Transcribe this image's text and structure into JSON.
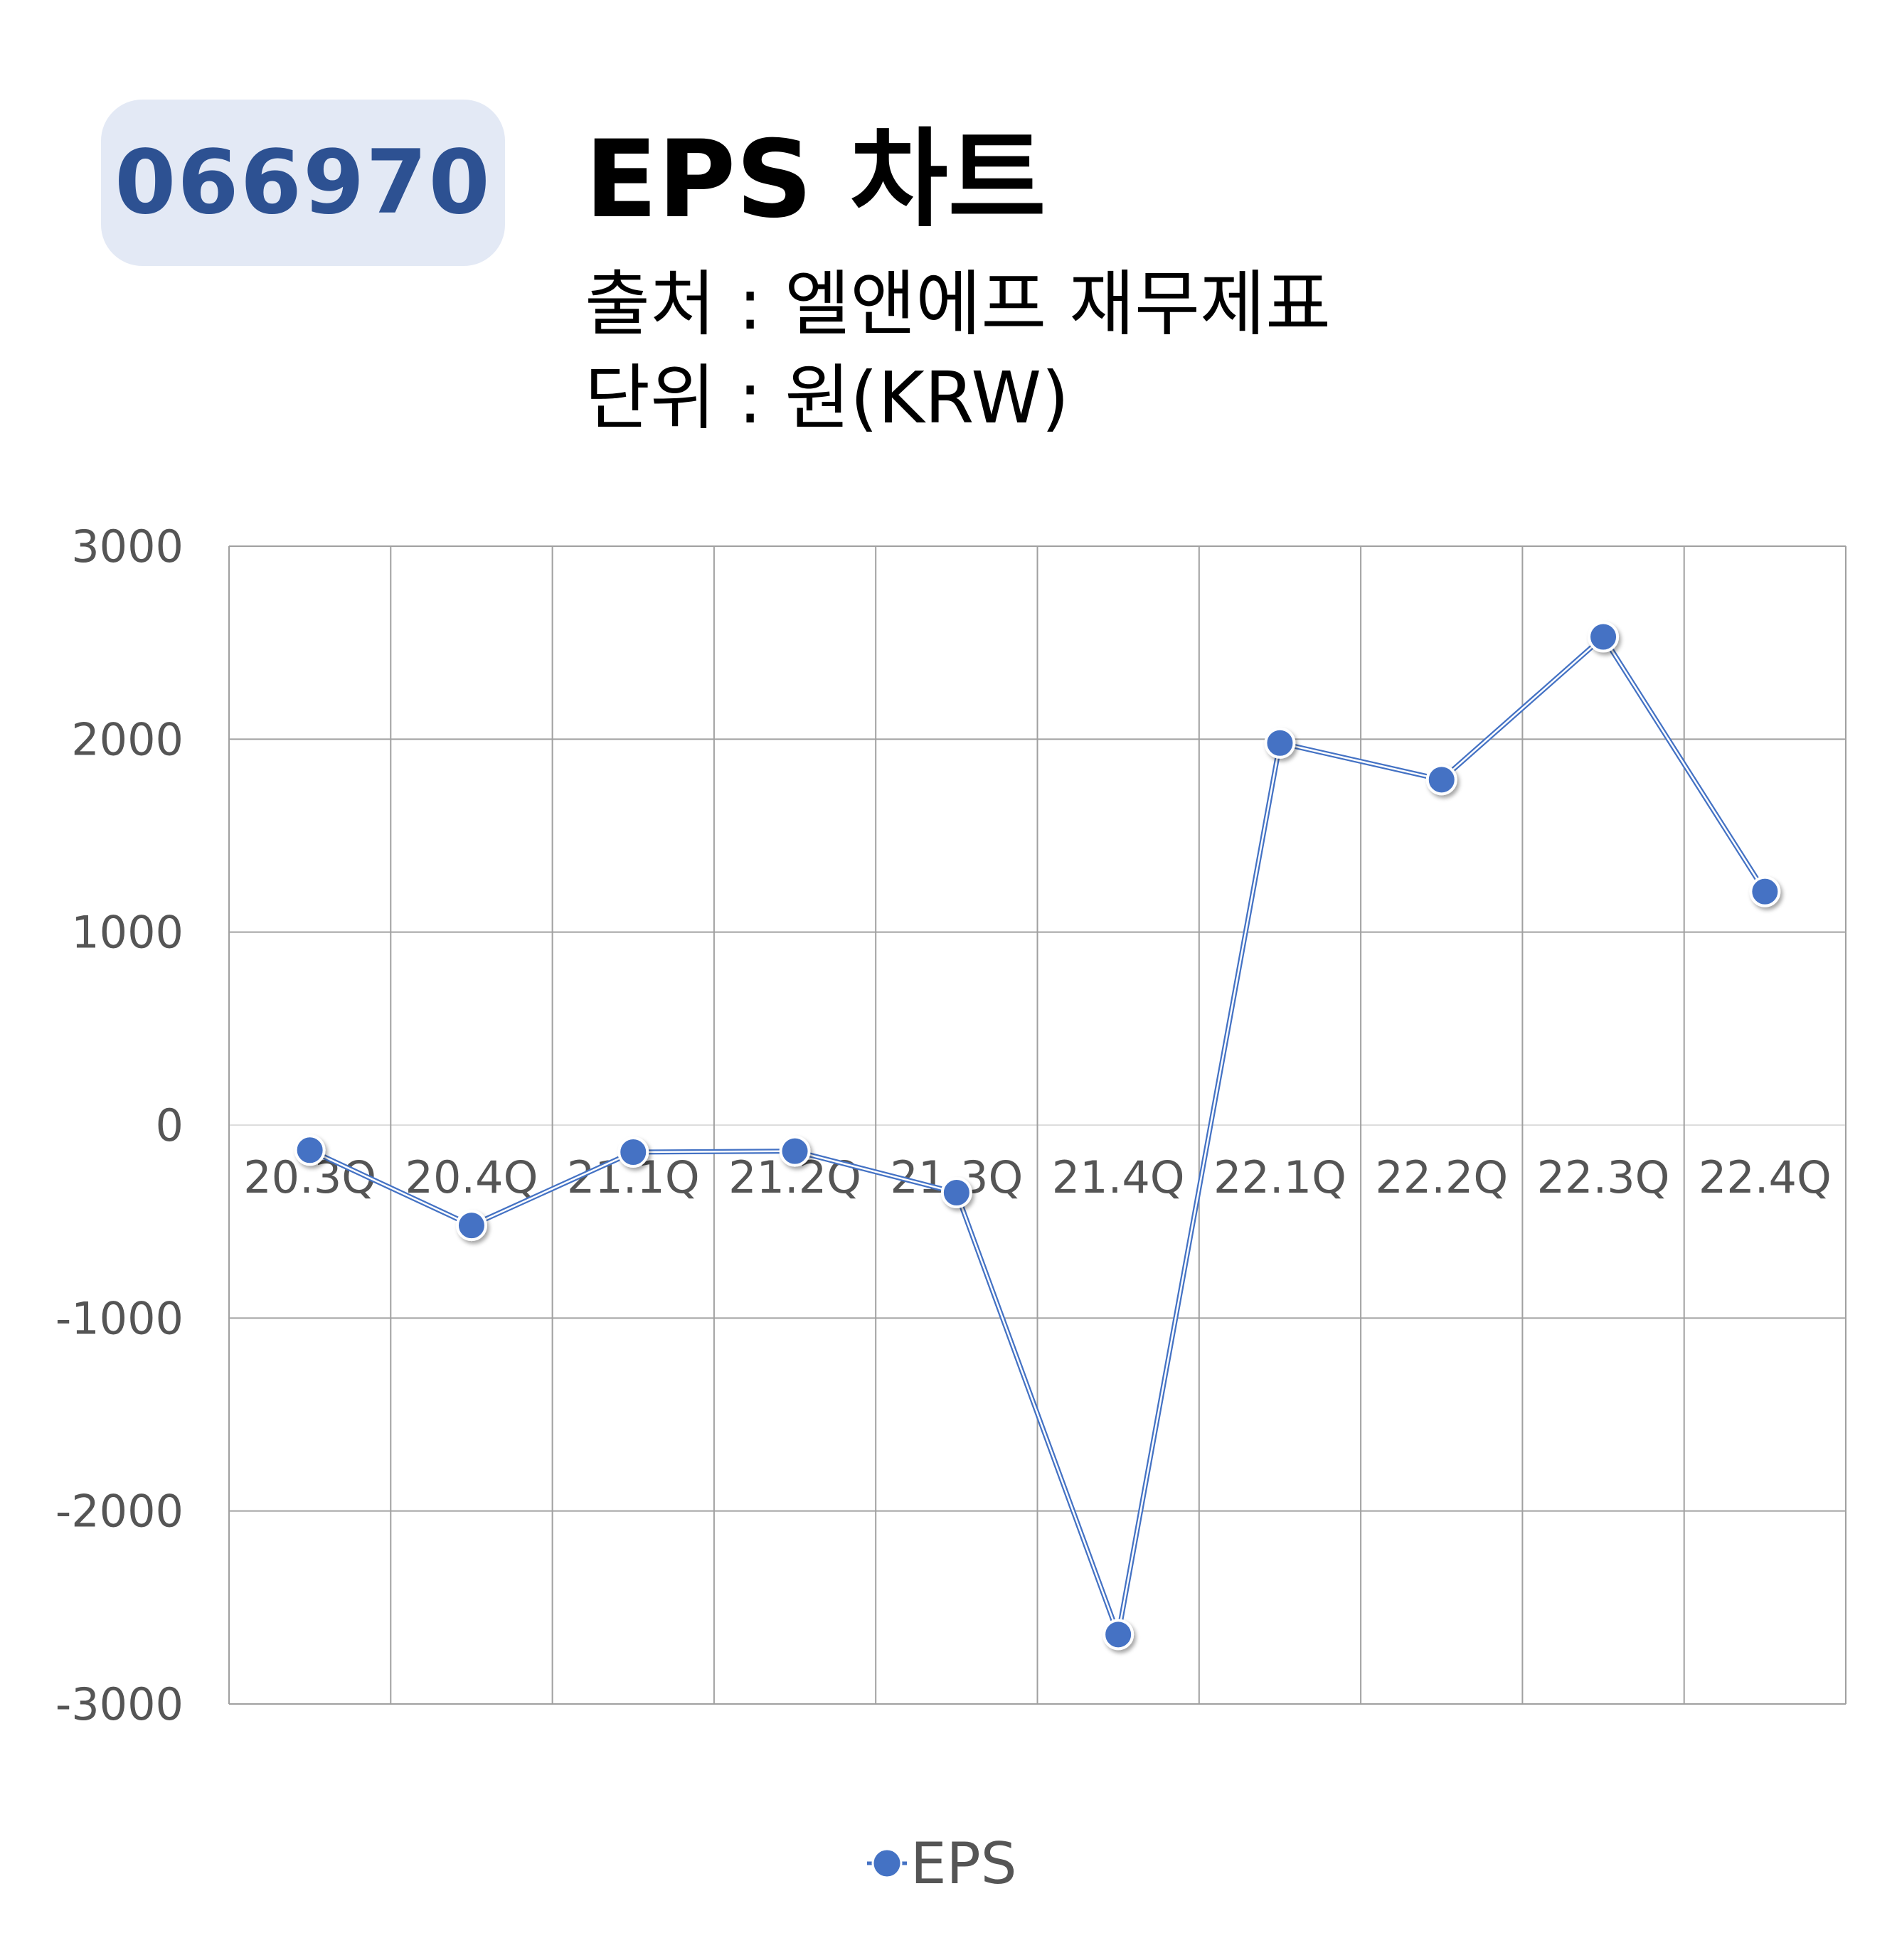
{
  "header": {
    "ticker": "066970",
    "title": "EPS 차트",
    "source": "출처 : 엘앤에프 재무제표",
    "unit": "단위 : 원(KRW)"
  },
  "colors": {
    "series": "#4472c4",
    "badge_bg": "#e3e9f5",
    "badge_text": "#2d5192",
    "grid": "#a0a0a0",
    "zero_line": "#dddddd"
  },
  "chart_data": {
    "type": "line",
    "categories": [
      "20.3Q",
      "20.4Q",
      "21.1Q",
      "21.2Q",
      "21.3Q",
      "21.4Q",
      "22.1Q",
      "22.2Q",
      "22.3Q",
      "22.4Q"
    ],
    "series": [
      {
        "name": "EPS",
        "values": [
          -130,
          -520,
          -140,
          -135,
          -350,
          -2640,
          1980,
          1790,
          2530,
          1210
        ]
      }
    ],
    "ylim": [
      -3000,
      3000
    ],
    "yticks": [
      "3000",
      "2000",
      "1000",
      "0",
      "-1000",
      "-2000",
      "-3000"
    ],
    "ytick_values": [
      3000,
      2000,
      1000,
      0,
      -1000,
      -2000,
      -3000
    ],
    "grid": true,
    "legend": "bottom"
  }
}
